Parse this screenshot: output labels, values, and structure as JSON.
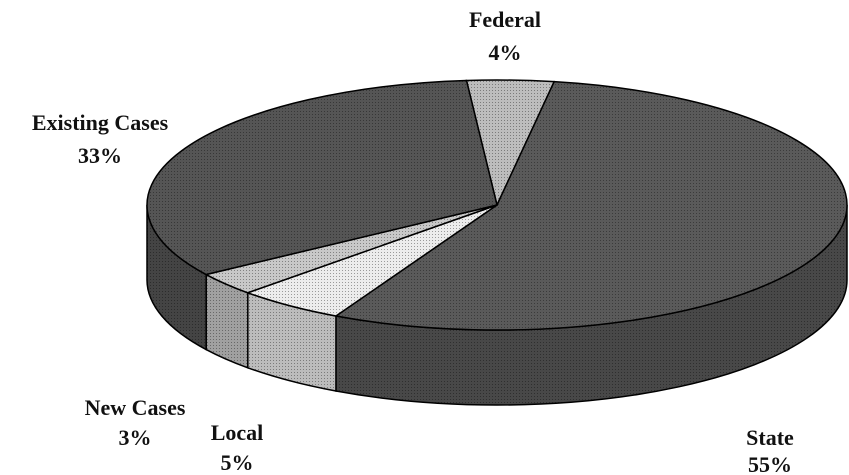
{
  "chart_data": {
    "type": "pie",
    "categories": [
      "Federal",
      "State",
      "Local",
      "New Cases",
      "Existing Cases"
    ],
    "values": [
      4,
      55,
      5,
      3,
      33
    ],
    "value_labels": [
      "4%",
      "55%",
      "5%",
      "3%",
      "33%"
    ],
    "colors": [
      "#bdbdbd",
      "#5a5a5a",
      "#ececec",
      "#c8c8c8",
      "#555555"
    ]
  }
}
